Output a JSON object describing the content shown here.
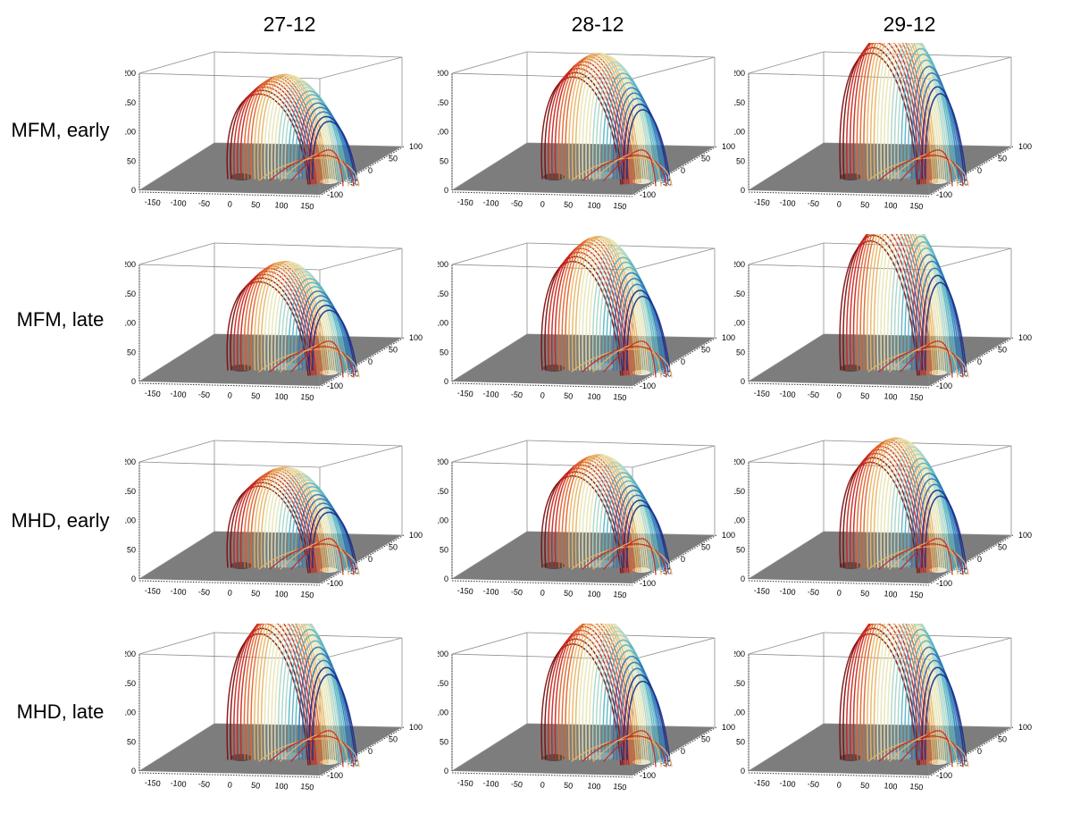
{
  "column_labels": [
    "27-12",
    "28-12",
    "29-12"
  ],
  "row_labels": [
    "MFM, early",
    "MFM, late",
    "MHD, early",
    "MHD, late"
  ],
  "axes": {
    "z_ticks": [
      "0",
      "50",
      "100",
      "150",
      "200"
    ],
    "x_ticks": [
      "-150",
      "-100",
      "-50",
      "0",
      "50",
      "100",
      "150"
    ],
    "y_ticks": [
      "100",
      "50",
      "0",
      "-50",
      "-100"
    ]
  },
  "colors": {
    "floor": "#7d7d7d",
    "box_line": "#8c8c8c",
    "field_line_palette": [
      "#7f0a0a",
      "#c8251c",
      "#e0642c",
      "#e8b464",
      "#e6e4b4",
      "#a8d6c8",
      "#5ab4c4",
      "#2e78b8",
      "#1a2e8c"
    ]
  },
  "panels": [
    {
      "row": 0,
      "col": 0,
      "height": 125
    },
    {
      "row": 0,
      "col": 1,
      "height": 150
    },
    {
      "row": 0,
      "col": 2,
      "height": 185
    },
    {
      "row": 1,
      "col": 0,
      "height": 130
    },
    {
      "row": 1,
      "col": 1,
      "height": 160
    },
    {
      "row": 1,
      "col": 2,
      "height": 190
    },
    {
      "row": 2,
      "col": 0,
      "height": 120
    },
    {
      "row": 2,
      "col": 1,
      "height": 135
    },
    {
      "row": 2,
      "col": 2,
      "height": 155
    },
    {
      "row": 3,
      "col": 0,
      "height": 185
    },
    {
      "row": 3,
      "col": 1,
      "height": 170
    },
    {
      "row": 3,
      "col": 2,
      "height": 185
    }
  ]
}
